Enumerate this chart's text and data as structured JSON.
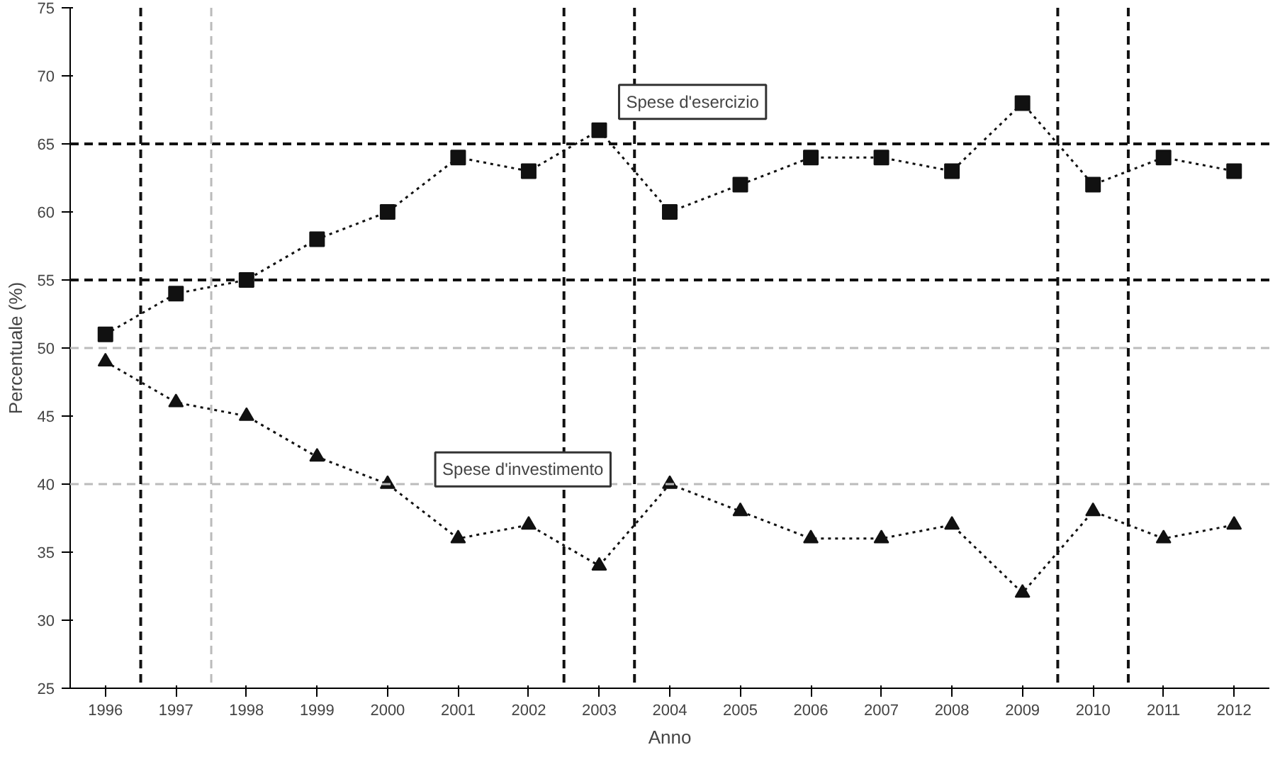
{
  "chart_data": {
    "type": "line",
    "xlabel": "Anno",
    "ylabel": "Percentuale (%)",
    "x": [
      1996,
      1997,
      1998,
      1999,
      2000,
      2001,
      2002,
      2003,
      2004,
      2005,
      2006,
      2007,
      2008,
      2009,
      2010,
      2011,
      2012
    ],
    "xlim": [
      1995.5,
      2012.5
    ],
    "xticks": [
      1996,
      1997,
      1998,
      1999,
      2000,
      2001,
      2002,
      2003,
      2004,
      2005,
      2006,
      2007,
      2008,
      2009,
      2010,
      2011,
      2012
    ],
    "ylim": [
      25,
      75
    ],
    "yticks": [
      25,
      30,
      35,
      40,
      45,
      50,
      55,
      60,
      65,
      70,
      75
    ],
    "series": [
      {
        "name": "Spese d'esercizio",
        "color": "#111111",
        "marker": "square",
        "values": [
          51,
          54,
          55,
          58,
          60,
          64,
          63,
          66,
          60,
          62,
          64,
          64,
          63,
          68,
          62,
          64,
          63
        ]
      },
      {
        "name": "Spese d'investimento",
        "color": "#111111",
        "marker": "triangle",
        "values": [
          49,
          46,
          45,
          42,
          40,
          36,
          37,
          34,
          40,
          38,
          36,
          36,
          37,
          32,
          38,
          36,
          37
        ]
      }
    ],
    "line_style": "dotted",
    "grid": false,
    "ref_lines": [
      {
        "axis": "y",
        "value": 65,
        "color": "#111111",
        "line_style": "dashed"
      },
      {
        "axis": "y",
        "value": 55,
        "color": "#111111",
        "line_style": "dashed"
      },
      {
        "axis": "y",
        "value": 50,
        "color": "#bbbbbb",
        "line_style": "dashed"
      },
      {
        "axis": "y",
        "value": 40,
        "color": "#bbbbbb",
        "line_style": "dashed"
      },
      {
        "axis": "x",
        "value": 1996.5,
        "color": "#111111",
        "line_style": "dashed"
      },
      {
        "axis": "x",
        "value": 1997.5,
        "color": "#bbbbbb",
        "line_style": "dashed"
      },
      {
        "axis": "x",
        "value": 2002.5,
        "color": "#111111",
        "line_style": "dashed"
      },
      {
        "axis": "x",
        "value": 2003.5,
        "color": "#111111",
        "line_style": "dashed"
      },
      {
        "axis": "x",
        "value": 2009.5,
        "color": "#111111",
        "line_style": "dashed"
      },
      {
        "axis": "x",
        "value": 2010.5,
        "color": "#111111",
        "line_style": "dashed"
      }
    ]
  }
}
